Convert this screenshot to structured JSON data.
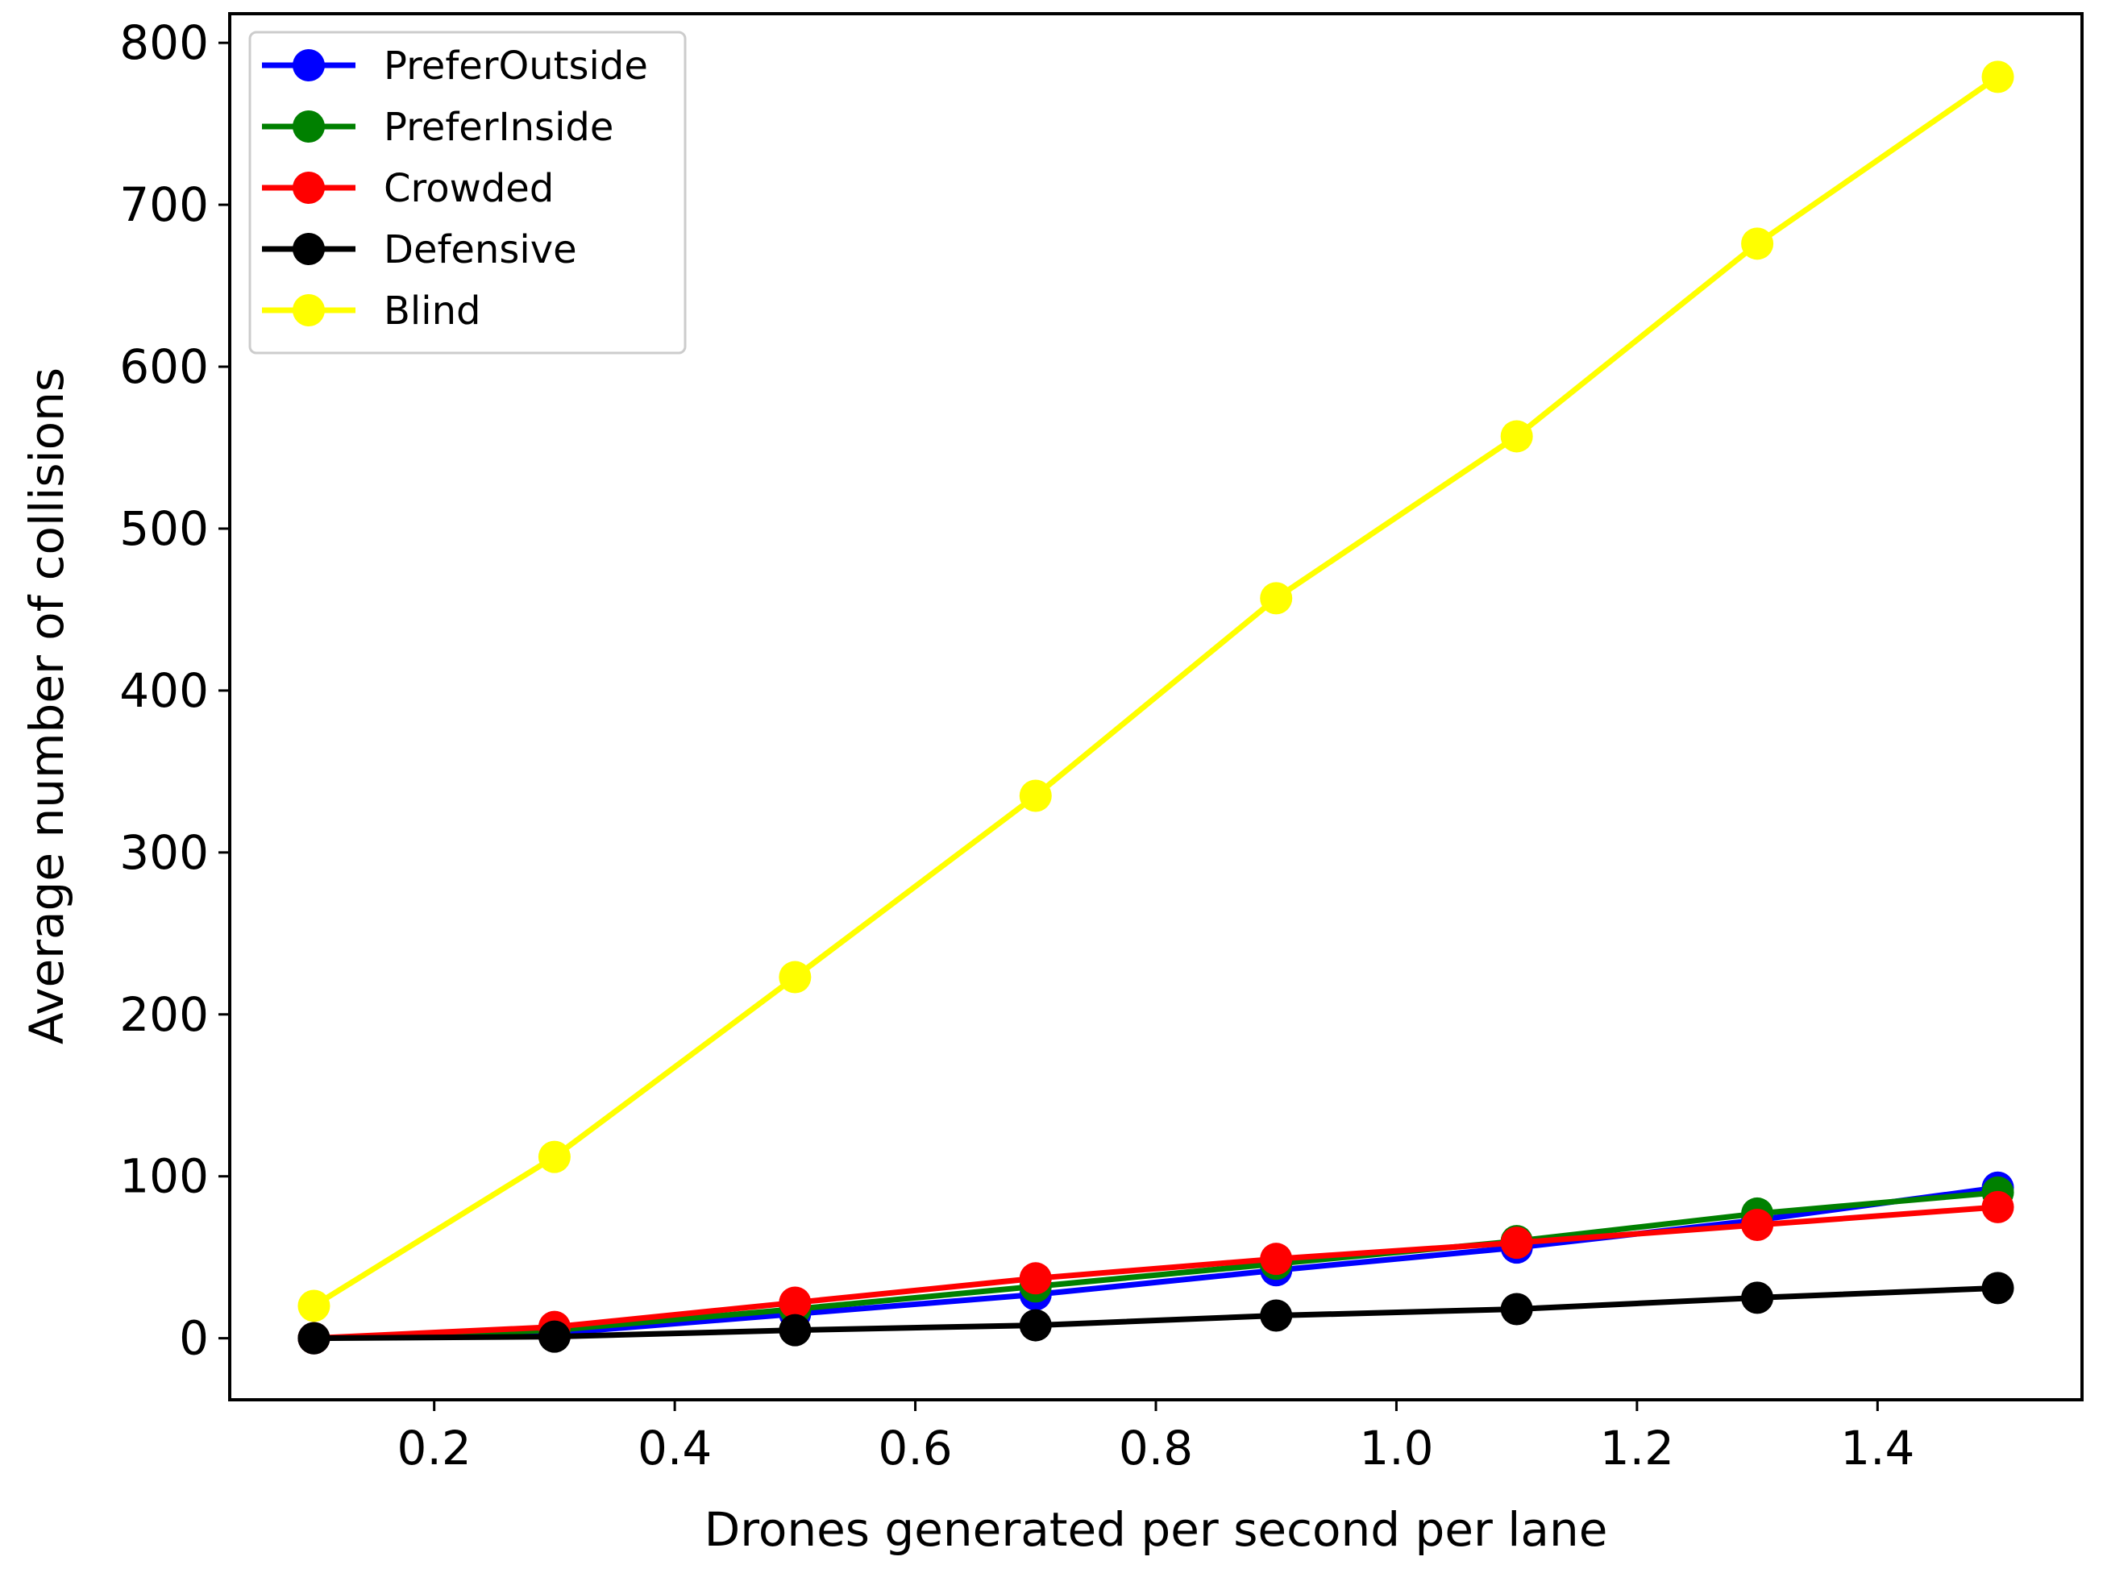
{
  "chart_data": {
    "type": "line",
    "title": "",
    "xlabel": "Drones generated per second per lane",
    "ylabel": "Average number of collisions",
    "xlim": [
      0.03,
      1.57
    ],
    "ylim": [
      -38,
      818
    ],
    "x": [
      0.1,
      0.3,
      0.5,
      0.7,
      0.9,
      1.1,
      1.3,
      1.5
    ],
    "x_ticks": [
      0.2,
      0.4,
      0.6,
      0.8,
      1.0,
      1.2,
      1.4
    ],
    "x_tick_labels": [
      "0.2",
      "0.4",
      "0.6",
      "0.8",
      "1.0",
      "1.2",
      "1.4"
    ],
    "y_ticks": [
      0,
      100,
      200,
      300,
      400,
      500,
      600,
      700,
      800
    ],
    "y_tick_labels": [
      "0",
      "100",
      "200",
      "300",
      "400",
      "500",
      "600",
      "700",
      "800"
    ],
    "grid": false,
    "legend_position": "top-left",
    "series": [
      {
        "name": "PreferOutside",
        "color": "#0000ff",
        "values": [
          0,
          3,
          15,
          27,
          42,
          56,
          73,
          93
        ]
      },
      {
        "name": "PreferInside",
        "color": "#008000",
        "values": [
          0,
          5,
          18,
          32,
          46,
          60,
          77,
          90
        ]
      },
      {
        "name": "Crowded",
        "color": "#ff0000",
        "values": [
          0,
          7,
          22,
          37,
          49,
          59,
          70,
          81
        ]
      },
      {
        "name": "Defensive",
        "color": "#000000",
        "values": [
          0,
          1,
          5,
          8,
          14,
          18,
          25,
          31
        ]
      },
      {
        "name": "Blind",
        "color": "#ffff00",
        "values": [
          20,
          112,
          223,
          335,
          457,
          557,
          676,
          779
        ]
      }
    ]
  }
}
